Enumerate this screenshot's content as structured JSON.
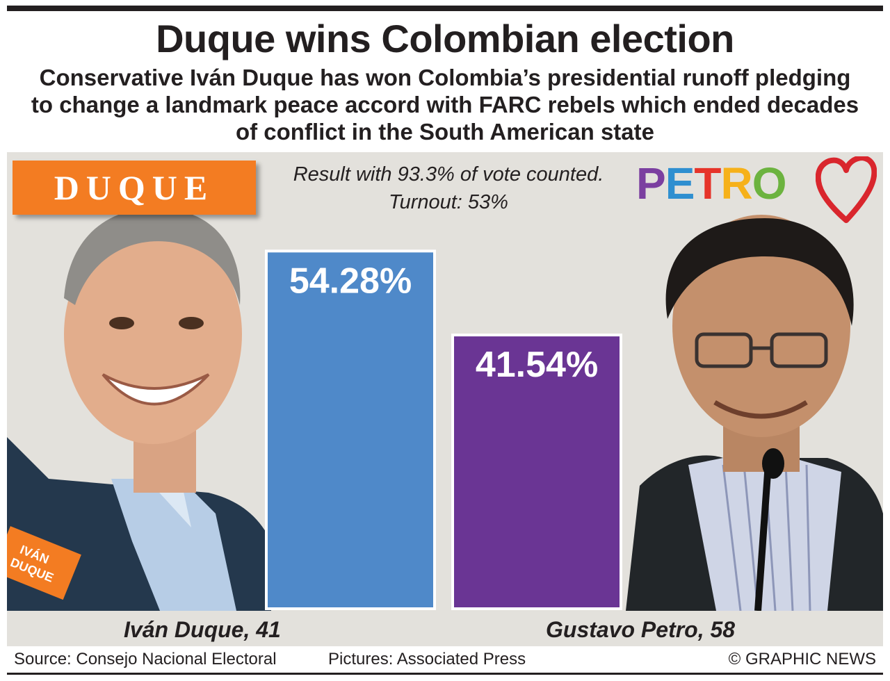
{
  "title": "Duque wins Colombian election",
  "subtitle": "Conservative Iván Duque has won Colombia’s presidential runoff pledging to change a landmark peace accord with FARC rebels which ended decades of conflict in the South American state",
  "note": "Result with 93.3% of vote counted. Turnout: 53%",
  "logos": {
    "duque": "DUQUE",
    "petro": [
      "P",
      "E",
      "T",
      "R",
      "O"
    ],
    "petro_colors": [
      "#7b3fa0",
      "#2f8fd0",
      "#e6342a",
      "#f6b11a",
      "#6cb33f"
    ]
  },
  "jacket_text": [
    "IVÁN",
    "DUQUE"
  ],
  "chart_data": {
    "type": "bar",
    "categories": [
      "Iván Duque, 41",
      "Gustavo Petro, 58"
    ],
    "values": [
      54.28,
      41.54
    ],
    "value_labels": [
      "54.28%",
      "41.54%"
    ],
    "colors": [
      "#4f89c9",
      "#6a3594"
    ],
    "ylim": [
      0,
      58
    ],
    "unit": "%"
  },
  "footer": {
    "source": "Source: Consejo Nacional Electoral",
    "pictures": "Pictures: Associated Press",
    "copyright": "© GRAPHIC NEWS"
  }
}
